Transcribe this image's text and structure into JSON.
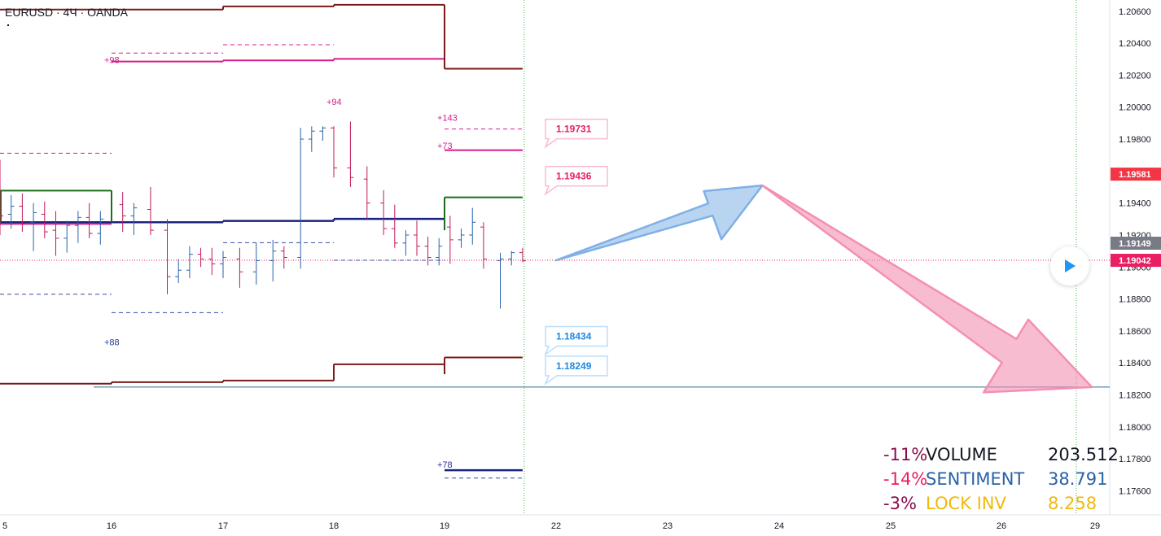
{
  "header": {
    "symbol": "EURUSD · 4Ч · OANDA"
  },
  "colors": {
    "candle_up": "#2962a8",
    "candle_down": "#c2185b",
    "level_dark": "#7b1a1a",
    "level_green": "#1b6e1b",
    "level_navy": "#1a237e",
    "level_pink": "#d81b8a",
    "level_blue_dashed": "#3949ab",
    "arrow_blue": "#7fb0e6",
    "arrow_pink": "#f48fb1",
    "price_red": "#f23645",
    "price_gray": "#787b86",
    "price_pink": "#e91e63"
  },
  "chart_data": {
    "type": "candlestick",
    "x_axis": {
      "labels": [
        "5",
        "16",
        "17",
        "18",
        "19",
        "22",
        "23",
        "24",
        "25",
        "26",
        "29"
      ]
    },
    "y_axis": {
      "min": 1.1745,
      "max": 1.2067,
      "labels": [
        "1.20600",
        "1.20400",
        "1.20200",
        "1.20000",
        "1.19800",
        "1.19600",
        "1.19400",
        "1.19200",
        "1.19000",
        "1.18800",
        "1.18600",
        "1.18400",
        "1.18200",
        "1.18000",
        "1.17800",
        "1.17600"
      ]
    },
    "price_markers": [
      {
        "value": "1.19581",
        "price": 1.19581,
        "kind": "red"
      },
      {
        "value": "1.19149",
        "price": 1.19149,
        "kind": "gray"
      },
      {
        "value": "1.19042",
        "price": 1.19042,
        "kind": "pink"
      }
    ],
    "callouts": [
      {
        "label": "1.19731",
        "price": 1.19731,
        "kind": "pink"
      },
      {
        "label": "1.19436",
        "price": 1.19436,
        "kind": "pink"
      },
      {
        "label": "1.18434",
        "price": 1.18434,
        "kind": "blue"
      },
      {
        "label": "1.18249",
        "price": 1.18249,
        "kind": "blue"
      }
    ],
    "annotations": [
      {
        "text": "+98",
        "day": 16,
        "price": 1.20295,
        "color": "pink"
      },
      {
        "text": "+94",
        "day": 18,
        "price": 1.20035,
        "color": "pink"
      },
      {
        "text": "+143",
        "day": 19,
        "price": 1.19935,
        "color": "pink"
      },
      {
        "text": "+73",
        "day": 19,
        "price": 1.1976,
        "color": "pink"
      },
      {
        "text": "+88",
        "day": 16,
        "price": 1.1853,
        "color": "blue"
      },
      {
        "text": "+78",
        "day": 19,
        "price": 1.17765,
        "color": "blue"
      }
    ],
    "candles": [
      [
        15.0,
        1.1952,
        1.1967,
        1.192,
        1.1932
      ],
      [
        15.1,
        1.1933,
        1.1945,
        1.1924,
        1.1938
      ],
      [
        15.2,
        1.1938,
        1.1946,
        1.1922,
        1.1927
      ],
      [
        15.3,
        1.1928,
        1.194,
        1.191,
        1.1934
      ],
      [
        15.4,
        1.1933,
        1.1941,
        1.1918,
        1.1922
      ],
      [
        15.5,
        1.1923,
        1.1935,
        1.1907,
        1.1918
      ],
      [
        15.6,
        1.1918,
        1.1929,
        1.1909,
        1.1926
      ],
      [
        15.7,
        1.1926,
        1.1935,
        1.1915,
        1.1931
      ],
      [
        15.8,
        1.1931,
        1.194,
        1.1918,
        1.1921
      ],
      [
        15.9,
        1.1921,
        1.1935,
        1.1914,
        1.193
      ],
      [
        16.1,
        1.1939,
        1.1947,
        1.1922,
        1.1932
      ],
      [
        16.2,
        1.1932,
        1.194,
        1.192,
        1.1937
      ],
      [
        16.35,
        1.1936,
        1.195,
        1.192,
        1.1923
      ],
      [
        16.5,
        1.1923,
        1.193,
        1.1883,
        1.1894
      ],
      [
        16.6,
        1.1894,
        1.1905,
        1.189,
        1.1898
      ],
      [
        16.7,
        1.1898,
        1.1913,
        1.1893,
        1.1908
      ],
      [
        16.8,
        1.1908,
        1.1912,
        1.19,
        1.1905
      ],
      [
        16.9,
        1.1905,
        1.1912,
        1.1895,
        1.1902
      ],
      [
        17.0,
        1.1902,
        1.191,
        1.1893,
        1.1906
      ],
      [
        17.15,
        1.1905,
        1.1912,
        1.1887,
        1.1897
      ],
      [
        17.3,
        1.1897,
        1.1915,
        1.1889,
        1.1904
      ],
      [
        17.45,
        1.1904,
        1.1917,
        1.1891,
        1.191
      ],
      [
        17.55,
        1.191,
        1.1913,
        1.1899,
        1.1906
      ],
      [
        17.7,
        1.1906,
        1.1987,
        1.1899,
        1.198
      ],
      [
        17.8,
        1.198,
        1.1988,
        1.1972,
        1.1985
      ],
      [
        17.9,
        1.1985,
        1.1988,
        1.1979,
        1.1987
      ],
      [
        18.0,
        1.1987,
        1.1988,
        1.1956,
        1.1962
      ],
      [
        18.15,
        1.1962,
        1.1991,
        1.195,
        1.1956
      ],
      [
        18.3,
        1.1955,
        1.1963,
        1.193,
        1.194
      ],
      [
        18.45,
        1.194,
        1.1948,
        1.192,
        1.1924
      ],
      [
        18.55,
        1.1924,
        1.1939,
        1.1912,
        1.1915
      ],
      [
        18.65,
        1.1915,
        1.1923,
        1.1907,
        1.192
      ],
      [
        18.75,
        1.192,
        1.1929,
        1.1907,
        1.1913
      ],
      [
        18.85,
        1.1913,
        1.1919,
        1.1901,
        1.1906
      ],
      [
        18.95,
        1.1906,
        1.1918,
        1.1901,
        1.1913
      ],
      [
        19.05,
        1.1925,
        1.1932,
        1.1902,
        1.1917
      ],
      [
        19.15,
        1.1917,
        1.1924,
        1.1912,
        1.192
      ],
      [
        19.25,
        1.192,
        1.1937,
        1.1914,
        1.1928
      ],
      [
        19.35,
        1.1925,
        1.1928,
        1.1899,
        1.1905
      ],
      [
        19.5,
        1.1904,
        1.1909,
        1.1874,
        1.1905
      ],
      [
        19.6,
        1.1905,
        1.191,
        1.1901,
        1.1909
      ],
      [
        19.7,
        1.1909,
        1.1912,
        1.1903,
        1.1904
      ]
    ],
    "levels": [
      {
        "color": "dark",
        "style": "solid",
        "segs": [
          [
            15.0,
            16.0,
            1.2061
          ],
          [
            16.0,
            17.0,
            1.2061
          ],
          [
            17.0,
            18.0,
            1.2063
          ],
          [
            18.0,
            19.0,
            1.2064
          ],
          [
            19.0,
            19.7,
            1.2024
          ]
        ]
      },
      {
        "color": "pink",
        "style": "solid",
        "segs": [
          [
            16.0,
            17.0,
            1.20285
          ],
          [
            17.0,
            18.0,
            1.20292
          ],
          [
            18.0,
            19.0,
            1.20302
          ],
          [
            19.7,
            19.7,
            1.20302
          ]
        ]
      },
      {
        "color": "pink",
        "style": "dashed",
        "segs": [
          [
            16.0,
            17.0,
            1.20338
          ],
          [
            17.0,
            18.0,
            1.2039
          ]
        ]
      },
      {
        "color": "pink",
        "style": "dashed",
        "segs": [
          [
            15.0,
            16.0,
            1.19712
          ],
          [
            19.0,
            19.7,
            1.19863
          ]
        ]
      },
      {
        "color": "pink",
        "style": "solid",
        "segs": [
          [
            19.0,
            19.7,
            1.19731
          ]
        ]
      },
      {
        "color": "green",
        "style": "solid",
        "segs": [
          [
            15.0,
            16.0,
            1.19478
          ],
          [
            19.0,
            19.7,
            1.19436
          ]
        ]
      },
      {
        "color": "navy",
        "style": "solid",
        "segs": [
          [
            15.0,
            16.0,
            1.1928
          ],
          [
            16.0,
            17.0,
            1.1928
          ],
          [
            17.0,
            18.0,
            1.19288
          ],
          [
            18.0,
            19.0,
            1.19301
          ]
        ]
      },
      {
        "color": "pinkline",
        "style": "solid",
        "segs": [
          [
            15.0,
            16.0,
            1.1927
          ]
        ]
      },
      {
        "color": "blue",
        "style": "dashed",
        "segs": [
          [
            15.0,
            16.0,
            1.1883
          ],
          [
            16.0,
            17.0,
            1.18715
          ],
          [
            17.0,
            18.0,
            1.19152
          ],
          [
            18.0,
            19.0,
            1.19042
          ]
        ]
      },
      {
        "color": "dark",
        "style": "solid",
        "segs": [
          [
            15.0,
            16.0,
            1.1827
          ],
          [
            16.0,
            17.0,
            1.1828
          ],
          [
            17.0,
            18.0,
            1.1829
          ],
          [
            18.0,
            19.0,
            1.18392
          ],
          [
            19.0,
            19.7,
            1.18434
          ]
        ]
      },
      {
        "color": "navy",
        "style": "solid",
        "segs": [
          [
            19.0,
            19.7,
            1.17729
          ]
        ]
      },
      {
        "color": "blue",
        "style": "dashed",
        "segs": [
          [
            19.0,
            19.7,
            1.1768
          ]
        ]
      }
    ],
    "arrows": [
      {
        "color": "blue",
        "from": [
          21.8,
          1.19042
        ],
        "to": [
          23.85,
          1.1951
        ]
      },
      {
        "color": "pink",
        "from": [
          23.85,
          1.1951
        ],
        "to": [
          28.9,
          1.18249
        ]
      }
    ],
    "horizontal_line": {
      "price": 1.18249
    },
    "vertical_line_day": 19.7
  },
  "stats": [
    {
      "pct": "-11%",
      "name": "VOLUME",
      "value": "203.512",
      "pct_color": "#880e4f",
      "name_color": "#131722",
      "value_color": "#131722"
    },
    {
      "pct": "-14%",
      "name": "SENTIMENT",
      "value": "38.791",
      "pct_color": "#e91e63",
      "name_color": "#2962a8",
      "value_color": "#2962a8"
    },
    {
      "pct": "-3%",
      "name": "LOCK INV",
      "value": "8.258",
      "pct_color": "#880e4f",
      "name_color": "#f0b90b",
      "value_color": "#f0b90b"
    }
  ]
}
